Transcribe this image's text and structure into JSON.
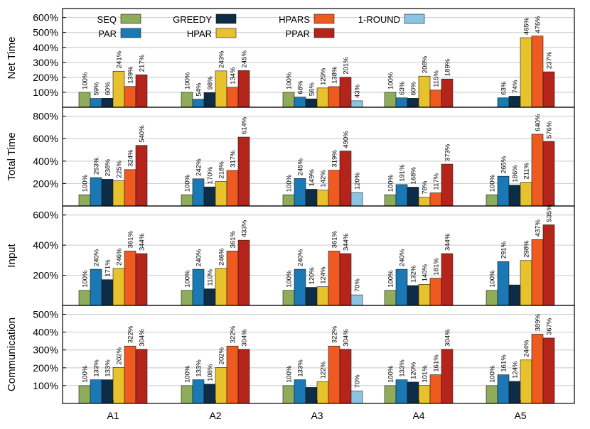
{
  "chart_data": {
    "type": "bar",
    "categories": [
      "A1",
      "A2",
      "A3",
      "A4",
      "A5"
    ],
    "legend": {
      "placement": "top-left",
      "items": [
        {
          "name": "SEQ",
          "color": "#8fac5a"
        },
        {
          "name": "GREEDY",
          "color": "#0d2c45"
        },
        {
          "name": "HPARS",
          "color": "#ee5a1f"
        },
        {
          "name": "1-ROUND",
          "color": "#89c5e2"
        },
        {
          "name": "PAR",
          "color": "#1a78b4"
        },
        {
          "name": "HPAR",
          "color": "#e8c22c"
        },
        {
          "name": "PPAR",
          "color": "#b4241a"
        }
      ]
    },
    "series_order": [
      "SEQ",
      "PAR",
      "GREEDY",
      "HPAR",
      "HPARS",
      "PPAR",
      "1-ROUND"
    ],
    "colors": {
      "SEQ": "#8fac5a",
      "PAR": "#1a78b4",
      "GREEDY": "#0d2c45",
      "HPAR": "#e8c22c",
      "HPARS": "#ee5a1f",
      "PPAR": "#b4241a",
      "1-ROUND": "#89c5e2"
    },
    "grid": true,
    "panels": [
      {
        "ylabel": "Net Time",
        "ylim": [
          0,
          660
        ],
        "yticks": [
          100,
          200,
          300,
          400,
          500,
          600
        ],
        "ytick_labels": [
          "100%",
          "200%",
          "300%",
          "400%",
          "500%",
          "600%"
        ],
        "values": {
          "A1": [
            100,
            59,
            60,
            241,
            139,
            217,
            null
          ],
          "A2": [
            100,
            54,
            98,
            243,
            134,
            245,
            null
          ],
          "A3": [
            100,
            68,
            56,
            129,
            138,
            201,
            43
          ],
          "A4": [
            100,
            63,
            60,
            208,
            115,
            189,
            null
          ],
          "A5": [
            null,
            63,
            74,
            465,
            476,
            237,
            null
          ]
        },
        "labels": {
          "A1": [
            "100%",
            "59%",
            "60%",
            "241%",
            "139%",
            "217%",
            ""
          ],
          "A2": [
            "100%",
            "54%",
            "98%",
            "243%",
            "134%",
            "245%",
            ""
          ],
          "A3": [
            "100%",
            "68%",
            "56%",
            "129%",
            "138%",
            "201%",
            "43%"
          ],
          "A4": [
            "100%",
            "63%",
            "60%",
            "208%",
            "115%",
            "189%",
            ""
          ],
          "A5": [
            "",
            "63%",
            "74%",
            "465%",
            "476%",
            "237%",
            ""
          ]
        }
      },
      {
        "ylabel": "Total Time",
        "ylim": [
          0,
          880
        ],
        "yticks": [
          200,
          400,
          600,
          800
        ],
        "ytick_labels": [
          "200%",
          "400%",
          "600%",
          "800%"
        ],
        "values": {
          "A1": [
            100,
            253,
            238,
            225,
            324,
            540,
            null
          ],
          "A2": [
            100,
            242,
            170,
            218,
            317,
            614,
            null
          ],
          "A3": [
            100,
            245,
            149,
            142,
            319,
            490,
            120
          ],
          "A4": [
            100,
            191,
            168,
            78,
            117,
            373,
            null
          ],
          "A5": [
            100,
            265,
            186,
            211,
            640,
            576,
            null
          ]
        },
        "labels": {
          "A1": [
            "100%",
            "253%",
            "238%",
            "225%",
            "324%",
            "540%",
            ""
          ],
          "A2": [
            "100%",
            "242%",
            "170%",
            "218%",
            "317%",
            "614%",
            ""
          ],
          "A3": [
            "100%",
            "245%",
            "149%",
            "142%",
            "319%",
            "490%",
            "120%"
          ],
          "A4": [
            "100%",
            "191%",
            "168%",
            "78%",
            "117%",
            "373%",
            ""
          ],
          "A5": [
            "100%",
            "265%",
            "186%",
            "211%",
            "640%",
            "576%",
            ""
          ]
        }
      },
      {
        "ylabel": "Input",
        "ylim": [
          0,
          660
        ],
        "yticks": [
          200,
          400,
          600
        ],
        "ytick_labels": [
          "200%",
          "400%",
          "600%"
        ],
        "values": {
          "A1": [
            100,
            240,
            171,
            246,
            361,
            344,
            null
          ],
          "A2": [
            100,
            240,
            110,
            246,
            361,
            433,
            null
          ],
          "A3": [
            100,
            240,
            120,
            124,
            361,
            344,
            70
          ],
          "A4": [
            100,
            240,
            132,
            140,
            181,
            344,
            null
          ],
          "A5": [
            100,
            291,
            136,
            298,
            437,
            535,
            null
          ]
        },
        "labels": {
          "A1": [
            "100%",
            "240%",
            "171%",
            "246%",
            "361%",
            "344%",
            ""
          ],
          "A2": [
            "100%",
            "240%",
            "110%",
            "246%",
            "361%",
            "433%",
            ""
          ],
          "A3": [
            "100%",
            "240%",
            "120%",
            "124%",
            "361%",
            "344%",
            "70%"
          ],
          "A4": [
            "100%",
            "240%",
            "132%",
            "140%",
            "181%",
            "344%",
            ""
          ],
          "A5": [
            "100%",
            "291%",
            "",
            "298%",
            "437%",
            "535%",
            ""
          ]
        }
      },
      {
        "ylabel": "Communication",
        "ylim": [
          0,
          550
        ],
        "yticks": [
          100,
          200,
          300,
          400,
          500
        ],
        "ytick_labels": [
          "100%",
          "200%",
          "300%",
          "400%",
          "500%"
        ],
        "values": {
          "A1": [
            100,
            133,
            133,
            202,
            322,
            304,
            null
          ],
          "A2": [
            100,
            133,
            108,
            202,
            322,
            304,
            null
          ],
          "A3": [
            100,
            133,
            90,
            122,
            322,
            304,
            70
          ],
          "A4": [
            100,
            133,
            120,
            101,
            161,
            304,
            null
          ],
          "A5": [
            100,
            161,
            124,
            244,
            389,
            367,
            null
          ]
        },
        "labels": {
          "A1": [
            "100%",
            "133%",
            "133%",
            "202%",
            "322%",
            "304%",
            ""
          ],
          "A2": [
            "100%",
            "133%",
            "108%",
            "202%",
            "322%",
            "304%",
            ""
          ],
          "A3": [
            "100%",
            "133%",
            "",
            "122%",
            "322%",
            "304%",
            "70%"
          ],
          "A4": [
            "100%",
            "133%",
            "120%",
            "101%",
            "161%",
            "304%",
            ""
          ],
          "A5": [
            "100%",
            "161%",
            "124%",
            "244%",
            "389%",
            "367%",
            ""
          ]
        }
      }
    ]
  }
}
